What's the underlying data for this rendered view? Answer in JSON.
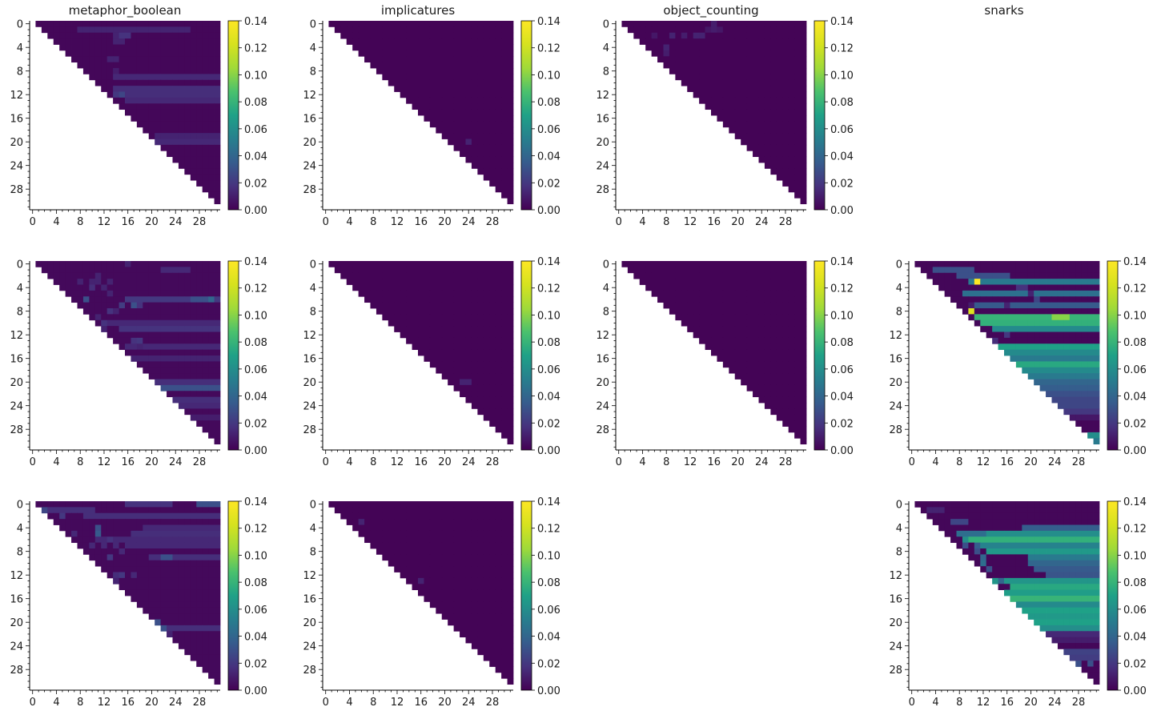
{
  "chart_data": {
    "type": "heatmap",
    "layout": {
      "rows": 3,
      "cols": 4
    },
    "matrix_size": 32,
    "colormap": "viridis",
    "colorbar": {
      "range": [
        0.0,
        0.14
      ],
      "ticks": [
        "0.00",
        "0.02",
        "0.04",
        "0.06",
        "0.08",
        "0.10",
        "0.12",
        "0.14"
      ]
    },
    "axis_ticks": [
      "0",
      "4",
      "8",
      "12",
      "16",
      "20",
      "24",
      "28"
    ],
    "column_titles": [
      "metaphor_boolean",
      "implicatures",
      "object_counting",
      "snarks"
    ],
    "description": "Upper-triangular heatmaps (cells with column > row); lower triangle blank. Values estimated from colors.",
    "panels": [
      {
        "row": 0,
        "col": 0,
        "title": "metaphor_boolean",
        "base": 0.002,
        "hbands": [
          [
            1,
            8,
            26,
            0.012
          ],
          [
            2,
            15,
            16,
            0.018
          ],
          [
            3,
            14,
            15,
            0.012
          ],
          [
            6,
            13,
            14,
            0.012
          ],
          [
            9,
            14,
            31,
            0.014
          ],
          [
            11,
            14,
            31,
            0.016
          ],
          [
            12,
            15,
            31,
            0.016
          ],
          [
            13,
            16,
            31,
            0.014
          ],
          [
            19,
            21,
            31,
            0.012
          ],
          [
            20,
            20,
            31,
            0.014
          ]
        ],
        "cells": [
          [
            2,
            14,
            0.012
          ],
          [
            8,
            14,
            0.01
          ],
          [
            12,
            14,
            0.02
          ],
          [
            12,
            15,
            0.026
          ]
        ]
      },
      {
        "row": 0,
        "col": 1,
        "title": "implicatures",
        "base": 0.001,
        "hbands": [],
        "cells": [
          [
            20,
            24,
            0.012
          ]
        ]
      },
      {
        "row": 0,
        "col": 2,
        "title": "object_counting",
        "base": 0.001,
        "hbands": [],
        "cells": [
          [
            0,
            16,
            0.01
          ],
          [
            1,
            15,
            0.008
          ],
          [
            1,
            16,
            0.01
          ],
          [
            1,
            17,
            0.008
          ],
          [
            2,
            6,
            0.008
          ],
          [
            2,
            9,
            0.012
          ],
          [
            2,
            11,
            0.01
          ],
          [
            2,
            13,
            0.012
          ],
          [
            2,
            14,
            0.012
          ],
          [
            4,
            8,
            0.012
          ],
          [
            5,
            8,
            0.01
          ]
        ]
      },
      {
        "row": 1,
        "col": 0,
        "title": "metaphor_boolean",
        "base": 0.003,
        "hbands": [
          [
            1,
            22,
            26,
            0.014
          ],
          [
            6,
            16,
            31,
            0.02
          ],
          [
            10,
            13,
            31,
            0.014
          ],
          [
            11,
            15,
            31,
            0.018
          ],
          [
            14,
            16,
            31,
            0.014
          ],
          [
            16,
            17,
            31,
            0.012
          ],
          [
            20,
            21,
            31,
            0.016
          ],
          [
            21,
            21,
            31,
            0.03
          ],
          [
            23,
            24,
            31,
            0.016
          ],
          [
            24,
            25,
            31,
            0.014
          ],
          [
            26,
            27,
            31,
            0.01
          ]
        ],
        "cells": [
          [
            0,
            16,
            0.012
          ],
          [
            2,
            11,
            0.012
          ],
          [
            3,
            8,
            0.012
          ],
          [
            3,
            10,
            0.012
          ],
          [
            3,
            11,
            0.012
          ],
          [
            3,
            13,
            0.012
          ],
          [
            4,
            10,
            0.016
          ],
          [
            4,
            12,
            0.012
          ],
          [
            5,
            13,
            0.012
          ],
          [
            6,
            6,
            0.018
          ],
          [
            6,
            9,
            0.03
          ],
          [
            6,
            27,
            0.03
          ],
          [
            6,
            28,
            0.03
          ],
          [
            6,
            29,
            0.03
          ],
          [
            6,
            30,
            0.04
          ],
          [
            7,
            15,
            0.022
          ],
          [
            7,
            17,
            0.03
          ],
          [
            7,
            18,
            0.018
          ],
          [
            8,
            13,
            0.018
          ],
          [
            8,
            14,
            0.012
          ],
          [
            9,
            11,
            0.012
          ],
          [
            10,
            12,
            0.018
          ],
          [
            11,
            12,
            0.012
          ],
          [
            13,
            17,
            0.018
          ],
          [
            13,
            18,
            0.02
          ],
          [
            14,
            18,
            0.012
          ]
        ]
      },
      {
        "row": 1,
        "col": 1,
        "title": "implicatures",
        "base": 0.001,
        "hbands": [],
        "cells": [
          [
            20,
            23,
            0.012
          ],
          [
            20,
            24,
            0.012
          ]
        ]
      },
      {
        "row": 1,
        "col": 2,
        "title": "object_counting",
        "base": 0.001,
        "hbands": [],
        "cells": []
      },
      {
        "row": 1,
        "col": 3,
        "title": "snarks",
        "base": 0.002,
        "hbands": [
          [
            1,
            4,
            10,
            0.03
          ],
          [
            2,
            8,
            16,
            0.03
          ],
          [
            3,
            10,
            31,
            0.05
          ],
          [
            5,
            9,
            31,
            0.045
          ],
          [
            7,
            10,
            31,
            0.034
          ],
          [
            9,
            11,
            31,
            0.08
          ],
          [
            10,
            12,
            31,
            0.078
          ],
          [
            11,
            14,
            31,
            0.058
          ],
          [
            14,
            15,
            31,
            0.07
          ],
          [
            15,
            16,
            31,
            0.058
          ],
          [
            16,
            17,
            31,
            0.05
          ],
          [
            17,
            16,
            31,
            0.074
          ],
          [
            18,
            18,
            31,
            0.058
          ],
          [
            19,
            19,
            31,
            0.05
          ],
          [
            20,
            20,
            31,
            0.04
          ],
          [
            21,
            21,
            31,
            0.036
          ],
          [
            22,
            22,
            31,
            0.03
          ],
          [
            23,
            24,
            31,
            0.026
          ],
          [
            24,
            25,
            31,
            0.026
          ],
          [
            25,
            26,
            31,
            0.02
          ],
          [
            26,
            26,
            31,
            0.008
          ],
          [
            29,
            29,
            31,
            0.06
          ],
          [
            30,
            31,
            31,
            0.05
          ]
        ],
        "cells": [
          [
            3,
            11,
            0.14
          ],
          [
            8,
            10,
            0.126
          ],
          [
            9,
            24,
            0.1
          ],
          [
            9,
            25,
            0.1
          ],
          [
            9,
            26,
            0.1
          ],
          [
            4,
            18,
            0.018
          ],
          [
            4,
            19,
            0.018
          ],
          [
            5,
            20,
            0.012
          ],
          [
            6,
            21,
            0.026
          ],
          [
            7,
            10,
            0.01
          ],
          [
            7,
            16,
            0.012
          ],
          [
            13,
            14,
            0.016
          ],
          [
            12,
            16,
            0.02
          ]
        ]
      },
      {
        "row": 2,
        "col": 0,
        "title": "metaphor_boolean",
        "base": 0.003,
        "hbands": [
          [
            0,
            17,
            19,
            0.03
          ],
          [
            0,
            28,
            31,
            0.03
          ],
          [
            0,
            16,
            23,
            0.018
          ],
          [
            1,
            3,
            10,
            0.016
          ],
          [
            2,
            9,
            31,
            0.016
          ],
          [
            4,
            19,
            31,
            0.014
          ],
          [
            5,
            17,
            31,
            0.016
          ],
          [
            6,
            11,
            31,
            0.014
          ],
          [
            7,
            16,
            31,
            0.014
          ],
          [
            9,
            20,
            31,
            0.016
          ],
          [
            21,
            22,
            31,
            0.016
          ],
          [
            22,
            22,
            23,
            0.012
          ]
        ],
        "cells": [
          [
            1,
            1,
            0.02
          ],
          [
            1,
            2,
            0.026
          ],
          [
            2,
            5,
            0.02
          ],
          [
            5,
            11,
            0.034
          ],
          [
            4,
            11,
            0.03
          ],
          [
            5,
            7,
            0.014
          ],
          [
            6,
            13,
            0.018
          ],
          [
            7,
            10,
            0.014
          ],
          [
            7,
            12,
            0.014
          ],
          [
            7,
            14,
            0.014
          ],
          [
            8,
            15,
            0.014
          ],
          [
            9,
            22,
            0.03
          ],
          [
            9,
            23,
            0.03
          ],
          [
            9,
            13,
            0.02
          ],
          [
            12,
            14,
            0.016
          ],
          [
            12,
            15,
            0.02
          ],
          [
            12,
            17,
            0.014
          ],
          [
            13,
            14,
            0.012
          ],
          [
            20,
            21,
            0.03
          ],
          [
            21,
            22,
            0.03
          ]
        ]
      },
      {
        "row": 2,
        "col": 1,
        "title": "implicatures",
        "base": 0.001,
        "hbands": [],
        "cells": [
          [
            3,
            6,
            0.012
          ],
          [
            13,
            16,
            0.012
          ]
        ]
      },
      {
        "row": 2,
        "col": 3,
        "title": "snarks",
        "base": 0.002,
        "hbands": [
          [
            1,
            3,
            5,
            0.012
          ],
          [
            3,
            7,
            9,
            0.026
          ],
          [
            4,
            19,
            31,
            0.036
          ],
          [
            5,
            8,
            14,
            0.044
          ],
          [
            5,
            13,
            31,
            0.06
          ],
          [
            6,
            10,
            31,
            0.078
          ],
          [
            7,
            11,
            31,
            0.054
          ],
          [
            8,
            13,
            31,
            0.066
          ],
          [
            9,
            20,
            31,
            0.05
          ],
          [
            10,
            20,
            31,
            0.04
          ],
          [
            11,
            21,
            31,
            0.034
          ],
          [
            12,
            23,
            31,
            0.032
          ],
          [
            13,
            14,
            31,
            0.064
          ],
          [
            14,
            17,
            31,
            0.074
          ],
          [
            15,
            16,
            31,
            0.068
          ],
          [
            16,
            16,
            31,
            0.08
          ],
          [
            17,
            17,
            31,
            0.058
          ],
          [
            18,
            18,
            31,
            0.07
          ],
          [
            19,
            19,
            31,
            0.066
          ],
          [
            20,
            20,
            31,
            0.07
          ],
          [
            21,
            21,
            31,
            0.06
          ],
          [
            22,
            23,
            31,
            0.014
          ],
          [
            23,
            24,
            31,
            0.01
          ],
          [
            25,
            26,
            31,
            0.024
          ],
          [
            26,
            27,
            31,
            0.022
          ],
          [
            27,
            28,
            28,
            0.03
          ],
          [
            27,
            30,
            30,
            0.03
          ]
        ],
        "cells": [
          [
            6,
            9,
            0.06
          ],
          [
            7,
            9,
            0.03
          ],
          [
            7,
            11,
            0.036
          ],
          [
            8,
            11,
            0.03
          ],
          [
            9,
            12,
            0.04
          ],
          [
            10,
            12,
            0.044
          ],
          [
            11,
            13,
            0.03
          ],
          [
            13,
            15,
            0.04
          ]
        ]
      }
    ]
  }
}
